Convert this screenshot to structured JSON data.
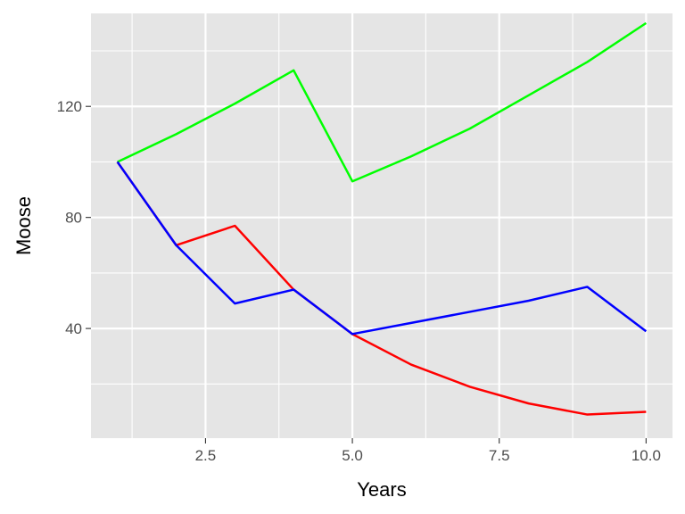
{
  "chart_data": {
    "type": "line",
    "title": "",
    "xlabel": "Years",
    "ylabel": "Moose",
    "xlim": [
      0.55,
      10.45
    ],
    "ylim": [
      0.5,
      153.5
    ],
    "x_ticks": [
      2.5,
      5.0,
      7.5,
      10.0
    ],
    "x_tick_labels": [
      "2.5",
      "5.0",
      "7.5",
      "10.0"
    ],
    "y_ticks": [
      40,
      80,
      120
    ],
    "y_tick_labels": [
      "40",
      "80",
      "120"
    ],
    "grid": true,
    "legend": "none",
    "x": [
      1,
      2,
      3,
      4,
      5,
      6,
      7,
      8,
      9,
      10
    ],
    "series": [
      {
        "color": "#00ff00",
        "values": [
          100,
          110,
          121,
          133,
          93,
          102,
          112,
          124,
          136,
          150
        ]
      },
      {
        "color": "#ff0000",
        "values": [
          100,
          70,
          77,
          54,
          38,
          27,
          19,
          13,
          9,
          10
        ]
      },
      {
        "color": "#0000ff",
        "values": [
          100,
          70,
          49,
          54,
          38,
          42,
          46,
          50,
          55,
          39
        ]
      }
    ]
  }
}
